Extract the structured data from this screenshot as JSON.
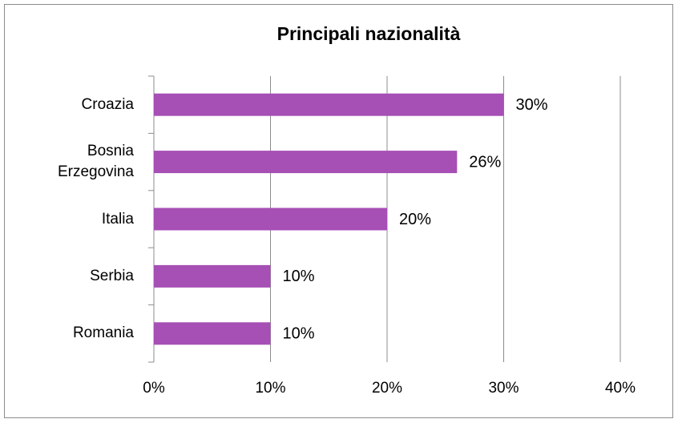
{
  "chart_data": {
    "type": "bar",
    "orientation": "horizontal",
    "title": "Principali nazionalità",
    "categories": [
      "Croazia",
      "Bosnia Erzegovina",
      "Italia",
      "Serbia",
      "Romania"
    ],
    "values": [
      30,
      26,
      20,
      10,
      10
    ],
    "value_labels": [
      "30%",
      "26%",
      "20%",
      "10%",
      "10%"
    ],
    "color": "#a64fb5",
    "xlim": [
      0,
      40
    ],
    "xticks": [
      {
        "value": 0,
        "label": "0%"
      },
      {
        "value": 10,
        "label": "10%"
      },
      {
        "value": 20,
        "label": "20%"
      },
      {
        "value": 30,
        "label": "30%"
      },
      {
        "value": 40,
        "label": "40%"
      }
    ],
    "grid": true
  }
}
